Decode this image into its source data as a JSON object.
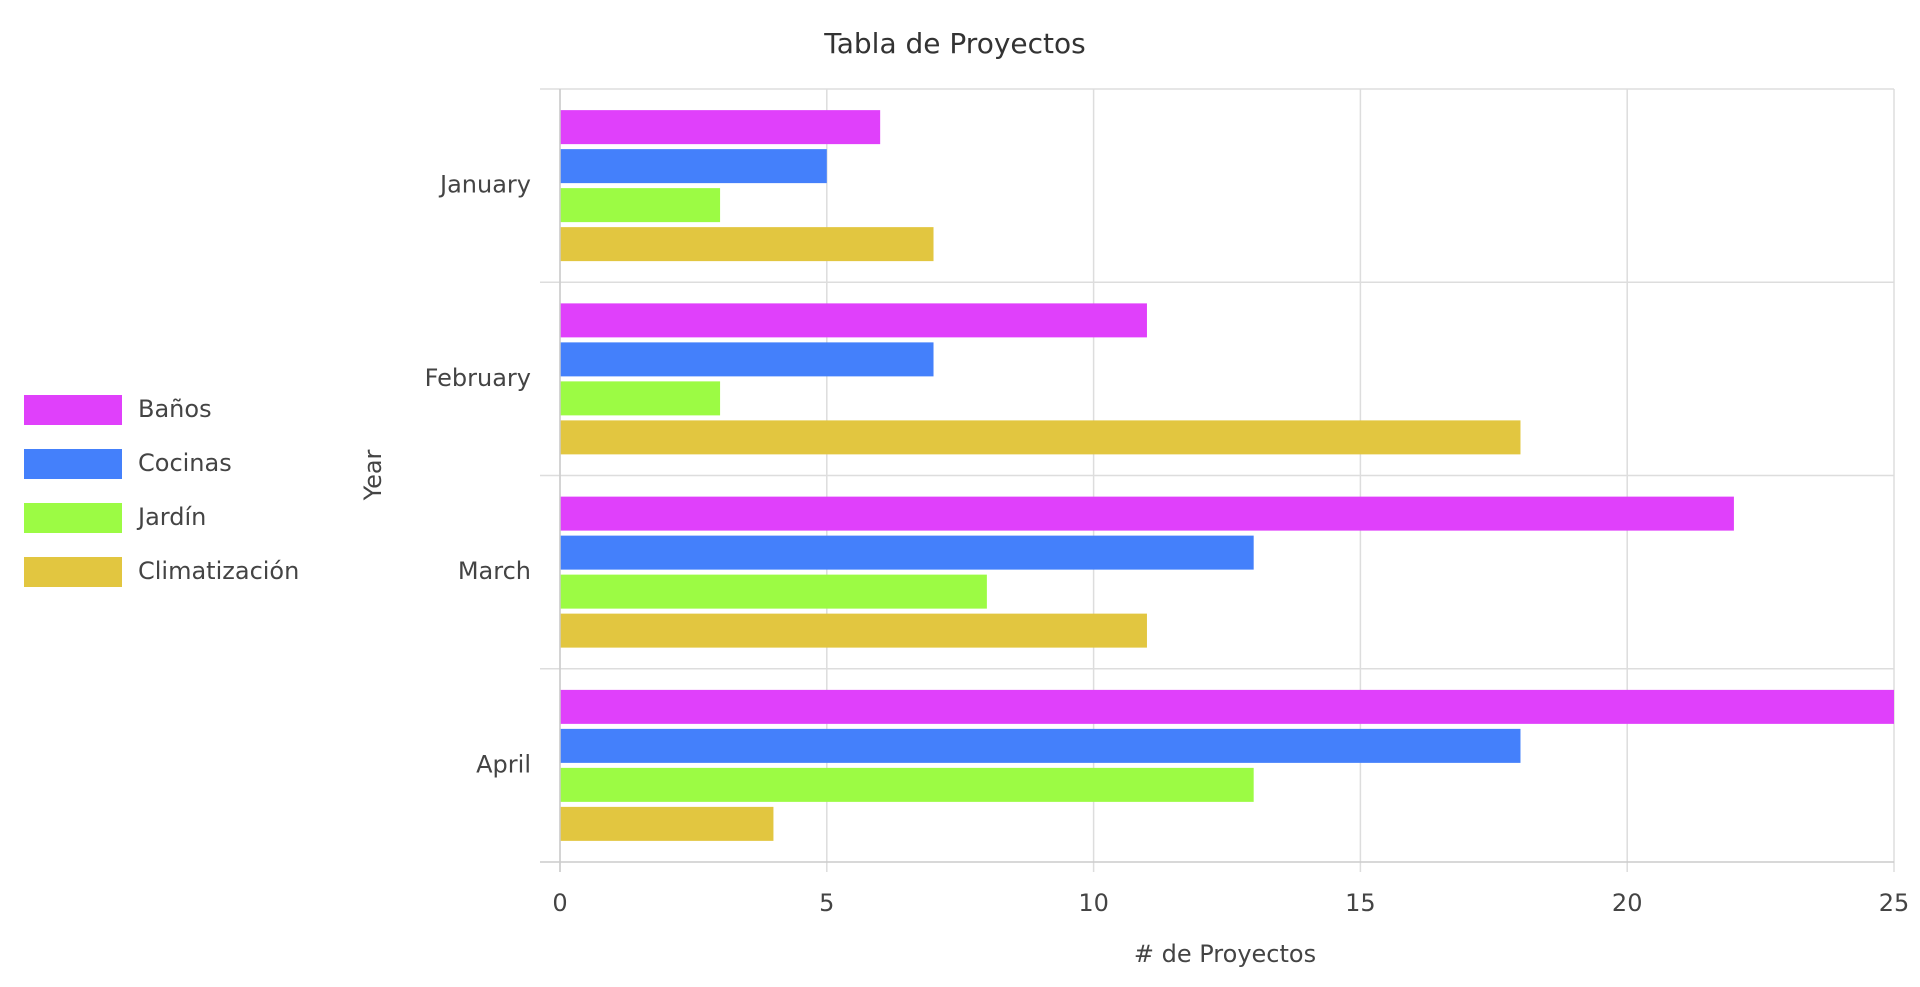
{
  "chart_data": {
    "type": "bar",
    "orientation": "horizontal",
    "title": "Tabla de Proyectos",
    "x_label": "# de Proyectos",
    "y_label": "Year",
    "categories": [
      "January",
      "February",
      "March",
      "April"
    ],
    "series": [
      {
        "name": "Baños",
        "color": "#e040fb",
        "values": [
          6,
          11,
          22,
          25
        ]
      },
      {
        "name": "Cocinas",
        "color": "#4480fb",
        "values": [
          5,
          7,
          13,
          18
        ]
      },
      {
        "name": "Jardín",
        "color": "#9cfb44",
        "values": [
          3,
          3,
          8,
          13
        ]
      },
      {
        "name": "Climatización",
        "color": "#e2c640",
        "values": [
          7,
          18,
          11,
          4
        ]
      }
    ],
    "xlim": [
      0,
      25
    ],
    "xticks": [
      0,
      5,
      10,
      15,
      20,
      25
    ],
    "grid": true,
    "legend": "left"
  }
}
